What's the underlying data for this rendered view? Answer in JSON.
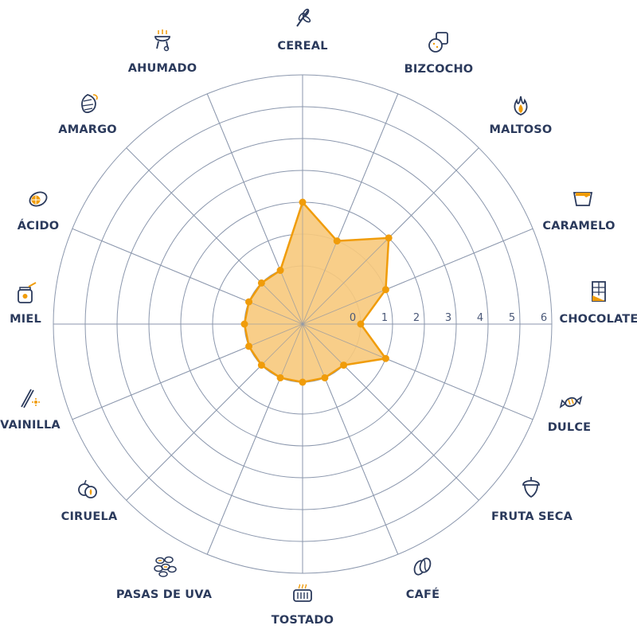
{
  "chart_data": {
    "type": "radar",
    "categories": [
      "CEREAL",
      "BIZCOCHO",
      "MALTOSO",
      "CARAMELO",
      "CHOCOLATE",
      "DULCE",
      "FRUTA SECA",
      "CAFÉ",
      "TOSTADO",
      "PASAS DE UVA",
      "CIRUELA",
      "VAINILLA",
      "MIEL",
      "ÁCIDO",
      "AMARGO",
      "AHUMADO"
    ],
    "icons": [
      "wheat-icon",
      "biscuit-icon",
      "malt-flame-icon",
      "caramel-icon",
      "chocolate-bar-icon",
      "candy-icon",
      "acorn-icon",
      "coffee-bean-icon",
      "toaster-icon",
      "raisins-icon",
      "plum-icon",
      "vanilla-pod-icon",
      "honey-jar-icon",
      "lemon-icon",
      "hops-icon",
      "grill-icon"
    ],
    "values": [
      2,
      1,
      2,
      1,
      0,
      1,
      0,
      0,
      0,
      0,
      0,
      0,
      0,
      0,
      0,
      0
    ],
    "tick_labels": [
      "0",
      "1",
      "2",
      "3",
      "4",
      "5",
      "6"
    ],
    "rlim": [
      -2,
      6
    ],
    "grid": true,
    "colors": {
      "fill": "#f7c97c",
      "stroke": "#f09c0a",
      "grid": "#8b97ad",
      "label": "#2b3a5c"
    }
  }
}
